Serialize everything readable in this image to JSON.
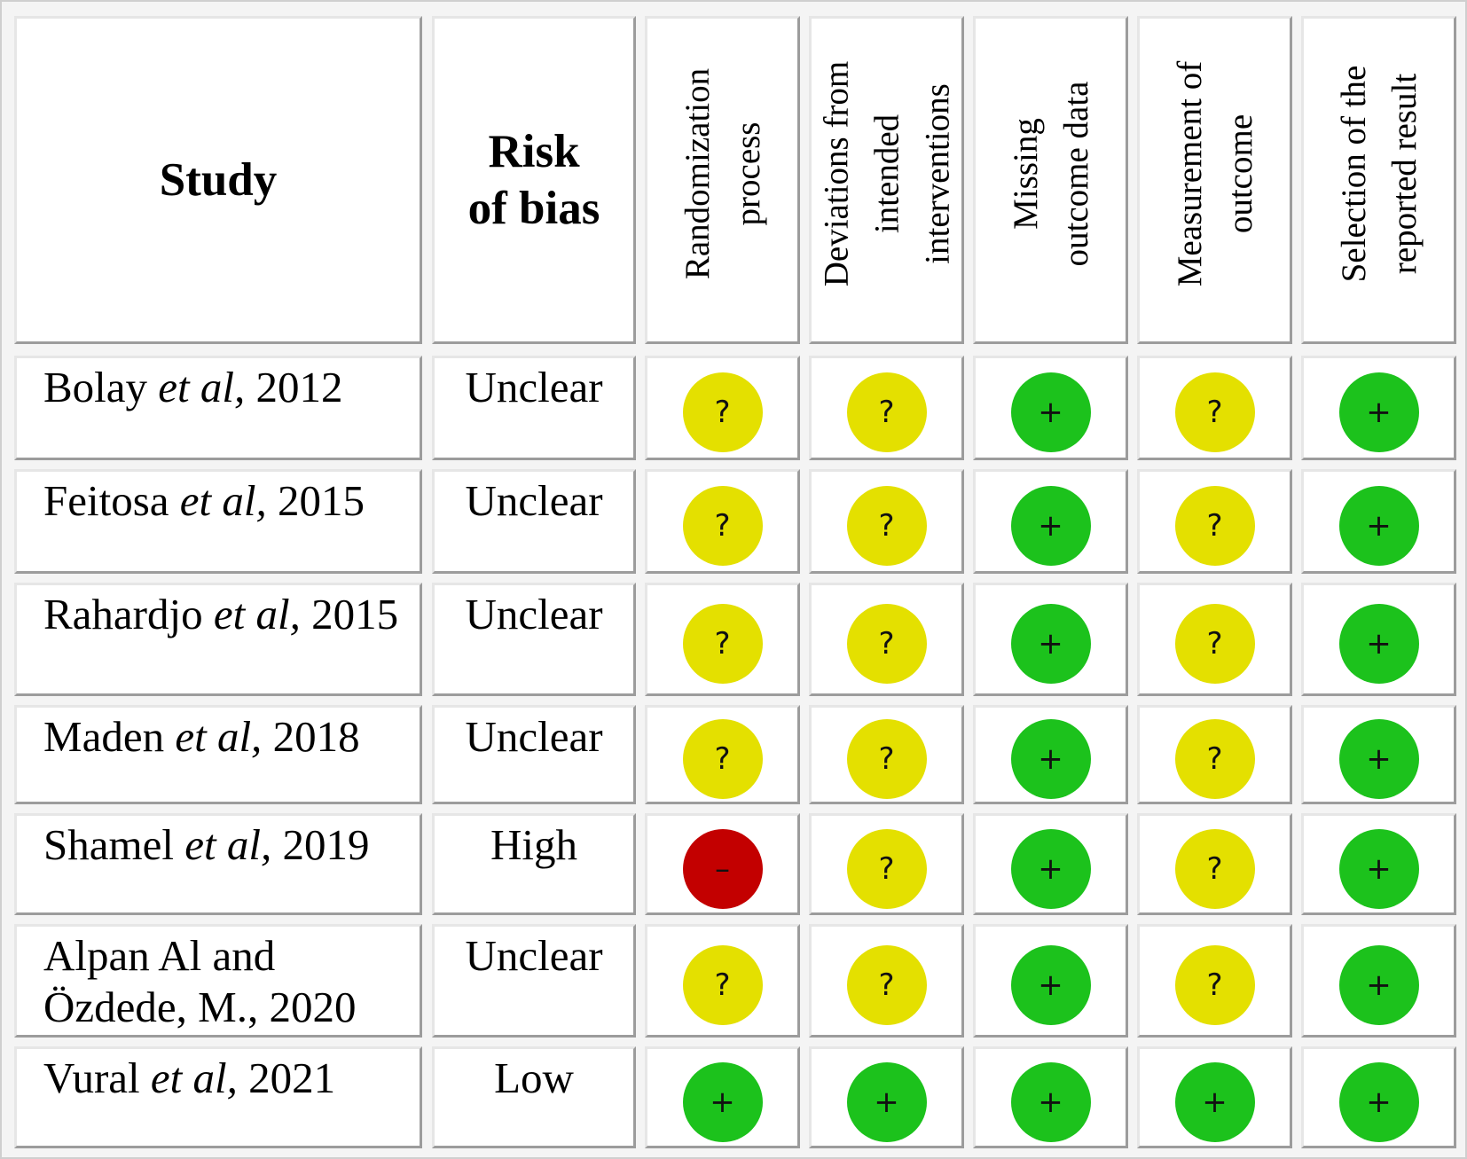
{
  "colors": {
    "low": "#1cc21c",
    "unclear": "#e4e000",
    "high": "#c30000"
  },
  "symbols": {
    "low": "+",
    "unclear": "?",
    "high": "–"
  },
  "header": {
    "study": "Study",
    "risk": "Risk\nof bias",
    "domains": [
      "Randomization\nprocess",
      "Deviations from\nintended\ninterventions",
      "Missing\noutcome data",
      "Measurement of\noutcome",
      "Selection of the\nreported result"
    ]
  },
  "rows": [
    {
      "author": "Bolay",
      "etal": "et al,",
      "year": "2012",
      "risk": "Unclear",
      "domains": [
        "unclear",
        "unclear",
        "low",
        "unclear",
        "low"
      ]
    },
    {
      "author": "Feitosa",
      "etal": "et al,",
      "year": "2015",
      "risk": "Unclear",
      "domains": [
        "unclear",
        "unclear",
        "low",
        "unclear",
        "low"
      ]
    },
    {
      "author": "Rahardjo",
      "etal": "et al,",
      "year": "2015",
      "risk": "Unclear",
      "domains": [
        "unclear",
        "unclear",
        "low",
        "unclear",
        "low"
      ]
    },
    {
      "author": "Maden",
      "etal": "et al,",
      "year": "2018",
      "risk": "Unclear",
      "domains": [
        "unclear",
        "unclear",
        "low",
        "unclear",
        "low"
      ]
    },
    {
      "author": "Shamel",
      "etal": "et al,",
      "year": "2019",
      "risk": "High",
      "domains": [
        "high",
        "unclear",
        "low",
        "unclear",
        "low"
      ]
    },
    {
      "author": "Alpan Al and Özdede, M., 2020",
      "etal": "",
      "year": "",
      "risk": "Unclear",
      "domains": [
        "unclear",
        "unclear",
        "low",
        "unclear",
        "low"
      ]
    },
    {
      "author": "Vural",
      "etal": "et al,",
      "year": "2021",
      "risk": "Low",
      "domains": [
        "low",
        "low",
        "low",
        "low",
        "low"
      ]
    }
  ]
}
